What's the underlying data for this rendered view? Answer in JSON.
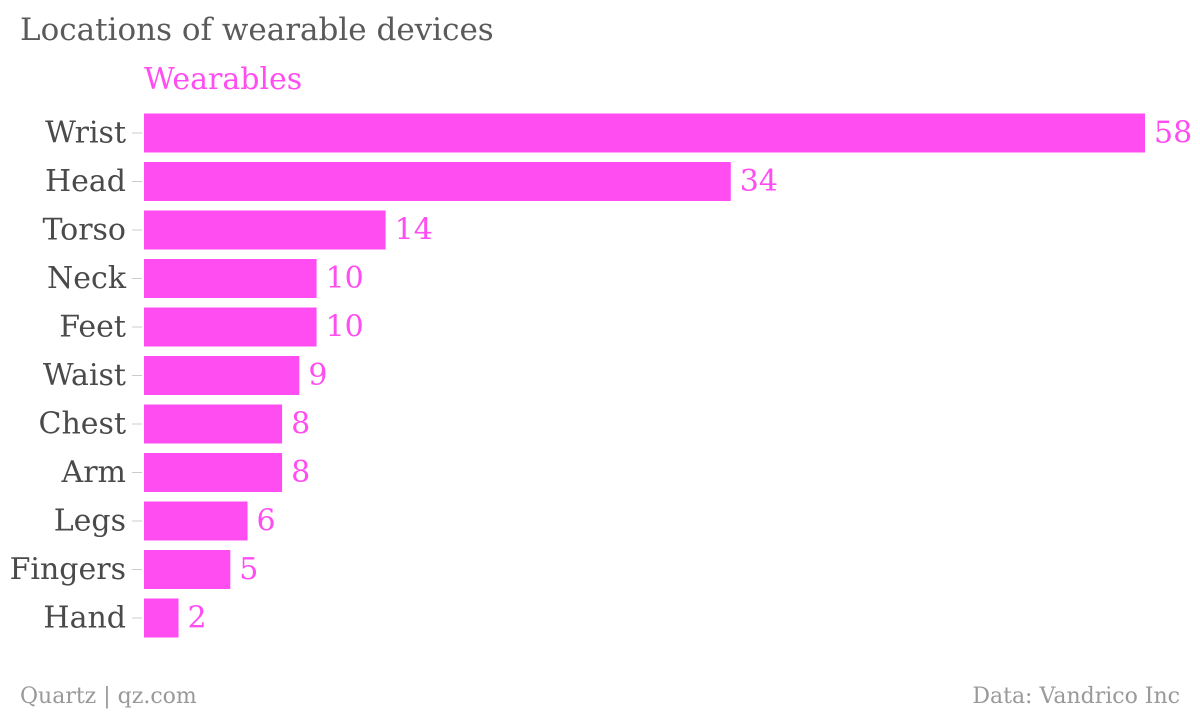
{
  "colors": {
    "bar": "#ff4df2",
    "value_label": "#ff4df2",
    "series_label": "#ff4df2",
    "category_label": "#4a4a4a",
    "tick": "#cccccc",
    "title": "#5a5a5a",
    "footer": "#999999"
  },
  "header": {
    "title": "Locations of wearable devices"
  },
  "footer": {
    "source_left": "Quartz | qz.com",
    "source_right": "Data: Vandrico Inc"
  },
  "chart_data": {
    "type": "bar",
    "orientation": "horizontal",
    "title": "Locations of wearable devices",
    "xlabel": "",
    "ylabel": "",
    "xlim": [
      0,
      58
    ],
    "grid": false,
    "legend": "top-left",
    "categories": [
      "Wrist",
      "Head",
      "Torso",
      "Neck",
      "Feet",
      "Waist",
      "Chest",
      "Arm",
      "Legs",
      "Fingers",
      "Hand"
    ],
    "series": [
      {
        "name": "Wearables",
        "values": [
          58,
          34,
          14,
          10,
          10,
          9,
          8,
          8,
          6,
          5,
          2
        ]
      }
    ],
    "data_labels": true
  }
}
